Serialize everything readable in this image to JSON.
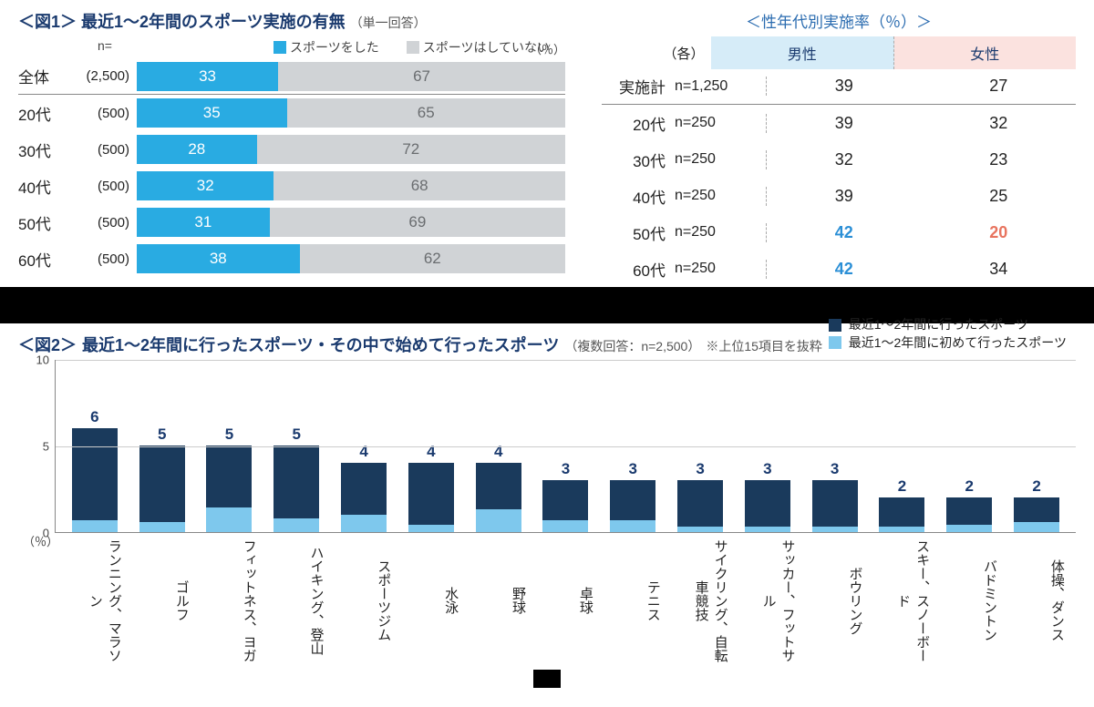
{
  "fig1": {
    "prefix": "＜図1＞",
    "title": "最近1～2年間のスポーツ実施の有無",
    "subtitle": "（単一回答）",
    "n_header": "n=",
    "pct_label": "（％）",
    "legend": {
      "did": "スポーツをした",
      "not": "スポーツはしていない"
    },
    "colors": {
      "did": "#29abe2",
      "not": "#d0d3d6",
      "not_text": "#6a6d70"
    },
    "rows": [
      {
        "cat": "全体",
        "n": "(2,500)",
        "did": 33,
        "not": 67,
        "total": true
      },
      {
        "cat": "20代",
        "n": "(500)",
        "did": 35,
        "not": 65
      },
      {
        "cat": "30代",
        "n": "(500)",
        "did": 28,
        "not": 72
      },
      {
        "cat": "40代",
        "n": "(500)",
        "did": 32,
        "not": 68
      },
      {
        "cat": "50代",
        "n": "(500)",
        "did": 31,
        "not": 69
      },
      {
        "cat": "60代",
        "n": "(500)",
        "did": 38,
        "not": 62
      }
    ],
    "right": {
      "title": "＜性年代別実施率（％）＞",
      "each_label": "（各）",
      "male_label": "男性",
      "female_label": "女性",
      "header_colors": {
        "male": "#d6ecf8",
        "female": "#fbe2df"
      },
      "rows": [
        {
          "cat": "実施計",
          "n": "n=1,250",
          "male": "39",
          "female": "27",
          "total": true
        },
        {
          "cat": "20代",
          "n": "n=250",
          "male": "39",
          "female": "32"
        },
        {
          "cat": "30代",
          "n": "n=250",
          "male": "32",
          "female": "23"
        },
        {
          "cat": "40代",
          "n": "n=250",
          "male": "39",
          "female": "25"
        },
        {
          "cat": "50代",
          "n": "n=250",
          "male": "42",
          "female": "20",
          "male_hl": "blue",
          "female_hl": "red"
        },
        {
          "cat": "60代",
          "n": "n=250",
          "male": "42",
          "female": "34",
          "male_hl": "blue"
        }
      ]
    }
  },
  "fig2": {
    "prefix": "＜図2＞",
    "title": "最近1～2年間に行ったスポーツ・その中で始めて行ったスポーツ",
    "subtitle": "（複数回答：n=2,500）",
    "note": "※上位15項目を抜粋",
    "legend": {
      "total": "最近1～2年間に行ったスポーツ",
      "first": "最近1～2年間に初めて行ったスポーツ"
    },
    "colors": {
      "total": "#1a3a5c",
      "first": "#7ec8ed",
      "label": "#1a3a6e"
    },
    "y": {
      "min": 0,
      "max": 10,
      "ticks": [
        0,
        5,
        10
      ],
      "unit": "（％）"
    },
    "bars": [
      {
        "label": "ランニング、マラソン",
        "total": 6,
        "first": 0.7,
        "display": "6"
      },
      {
        "label": "ゴルフ",
        "total": 5,
        "first": 0.6,
        "display": "5"
      },
      {
        "label": "フィットネス、ヨガ",
        "total": 5,
        "first": 1.4,
        "display": "5"
      },
      {
        "label": "ハイキング、登山",
        "total": 5,
        "first": 0.8,
        "display": "5"
      },
      {
        "label": "スポーツジム",
        "total": 4,
        "first": 1.0,
        "display": "4"
      },
      {
        "label": "水泳",
        "total": 4,
        "first": 0.4,
        "display": "4"
      },
      {
        "label": "野球",
        "total": 4,
        "first": 1.3,
        "display": "4"
      },
      {
        "label": "卓球",
        "total": 3,
        "first": 0.7,
        "display": "3"
      },
      {
        "label": "テニス",
        "total": 3,
        "first": 0.7,
        "display": "3"
      },
      {
        "label": "サイクリング、自転車競技",
        "total": 3,
        "first": 0.3,
        "display": "3"
      },
      {
        "label": "サッカー、フットサル",
        "total": 3,
        "first": 0.3,
        "display": "3"
      },
      {
        "label": "ボウリング",
        "total": 3,
        "first": 0.3,
        "display": "3"
      },
      {
        "label": "スキー、スノーボード",
        "total": 2,
        "first": 0.3,
        "display": "2"
      },
      {
        "label": "バドミントン",
        "total": 2,
        "first": 0.4,
        "display": "2"
      },
      {
        "label": "体操、ダンス",
        "total": 2,
        "first": 0.6,
        "display": "2"
      }
    ]
  }
}
